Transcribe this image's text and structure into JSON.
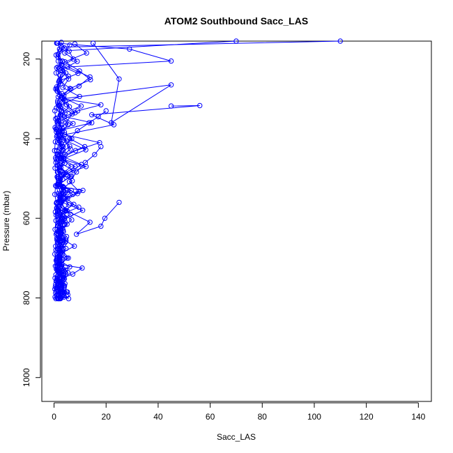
{
  "chart_data": {
    "type": "line",
    "title": "ATOM2 Southbound Sacc_LAS",
    "xlabel": "Sacc_LAS",
    "ylabel": "Pressure (mbar)",
    "x_ticks": [
      0,
      20,
      40,
      60,
      80,
      100,
      120,
      140
    ],
    "y_ticks": [
      200,
      400,
      600,
      800,
      1000
    ],
    "xlim": [
      -4.7,
      145
    ],
    "ylim": [
      1060,
      155
    ],
    "y_reversed": true,
    "marker": "open-circle",
    "line_color": "#0000ff",
    "grid": false,
    "series": [
      {
        "x": [
          1.5,
          2.1,
          0.8,
          3.2,
          1.0,
          2.5,
          1.8,
          0.6,
          2.2,
          1.4,
          3.0,
          1.1,
          2.6,
          0.9,
          1.7,
          2.8,
          1.2,
          0.7,
          2.0,
          1.5,
          3.4,
          2.3,
          1.0,
          4.1,
          2.7,
          1.6,
          0.8,
          3.1,
          2.4,
          1.3,
          2.9,
          4.5,
          3.6,
          2.2,
          5.1,
          3.8,
          1.9
        ],
        "y": [
          160,
          175,
          190,
          205,
          222,
          240,
          258,
          275,
          292,
          310,
          330,
          348,
          365,
          383,
          400,
          420,
          440,
          460,
          480,
          500,
          520,
          540,
          560,
          580,
          600,
          620,
          640,
          660,
          680,
          700,
          720,
          740,
          755,
          770,
          785,
          795,
          802
        ]
      },
      {
        "x": [
          2.8,
          4.0,
          1.5,
          3.3,
          2.1,
          5.5,
          2.6,
          1.3,
          3.9,
          2.0,
          4.2,
          1.8,
          3.0,
          2.4,
          1.6,
          3.5,
          2.9,
          1.2,
          4.4,
          2.3,
          3.7,
          1.9,
          2.7,
          5.0,
          3.2,
          1.4,
          2.5,
          4.6,
          3.0,
          1.7,
          2.2,
          3.8,
          1.1,
          4.0,
          2.6,
          5.6
        ],
        "y": [
          158,
          172,
          188,
          206,
          224,
          243,
          262,
          281,
          300,
          318,
          336,
          354,
          372,
          391,
          410,
          429,
          448,
          467,
          486,
          505,
          524,
          543,
          562,
          581,
          600,
          619,
          638,
          657,
          676,
          695,
          714,
          733,
          752,
          770,
          788,
          802
        ]
      },
      {
        "x": [
          1.2,
          5.8,
          7.4,
          3.1,
          9.2,
          2.0,
          6.5,
          1.6,
          4.8,
          8.1,
          2.7,
          1.0,
          3.6,
          6.0,
          2.2,
          4.1,
          1.4,
          7.0,
          2.9,
          5.2,
          1.8,
          3.4,
          2.5,
          1.1,
          4.3,
          2.0,
          3.1,
          1.5,
          2.8,
          4.0,
          1.3,
          2.6
        ],
        "y": [
          160,
          180,
          200,
          218,
          236,
          255,
          275,
          295,
          315,
          335,
          356,
          377,
          398,
          419,
          440,
          462,
          484,
          506,
          528,
          550,
          572,
          594,
          616,
          638,
          660,
          682,
          704,
          726,
          748,
          770,
          790,
          801
        ]
      },
      {
        "x": [
          8.0,
          12.5,
          4.2,
          9.8,
          14.0,
          6.1,
          3.0,
          10.4,
          2.4,
          7.3,
          1.9,
          5.0,
          12.2,
          3.8,
          2.1,
          6.7,
          1.5,
          9.0,
          2.8,
          4.4,
          1.7,
          3.3,
          2.2,
          7.8,
          1.4,
          2.9,
          5.3,
          2.0,
          3.6,
          1.2
        ],
        "y": [
          162,
          185,
          207,
          230,
          252,
          274,
          296,
          318,
          340,
          362,
          384,
          406,
          428,
          450,
          472,
          494,
          516,
          538,
          560,
          582,
          604,
          626,
          648,
          670,
          692,
          714,
          736,
          758,
          780,
          800
        ]
      },
      {
        "x": [
          110,
          3.0,
          1.5,
          2.8,
          4.5,
          2.0,
          1.1,
          3.4,
          5.9,
          2.5,
          1.7,
          4.0,
          2.2,
          3.1,
          1.4,
          2.6,
          6.2,
          1.9,
          3.5,
          1.2,
          2.4,
          4.2,
          1.6,
          3.0,
          2.1,
          1.3,
          2.7,
          1.8,
          3.6,
          2.3,
          1.0,
          4.8,
          3.0,
          1.5
        ],
        "y": [
          155,
          170,
          195,
          215,
          235,
          255,
          275,
          300,
          320,
          340,
          362,
          384,
          406,
          428,
          450,
          472,
          494,
          516,
          538,
          560,
          584,
          608,
          632,
          656,
          680,
          704,
          720,
          735,
          750,
          762,
          774,
          785,
          795,
          802
        ]
      },
      {
        "x": [
          70,
          2.3,
          1.6,
          3.4,
          2.0,
          1.2,
          4.2,
          2.8,
          1.5,
          3.1,
          2.2,
          1.0,
          3.7,
          2.5,
          1.8,
          4.5,
          2.1,
          1.3,
          2.9,
          3.5,
          1.7,
          2.4,
          1.1,
          3.0,
          2.0,
          1.4,
          2.6,
          3.9,
          1.8,
          2.3
        ],
        "y": [
          155,
          180,
          205,
          230,
          255,
          280,
          305,
          330,
          355,
          380,
          405,
          430,
          455,
          480,
          505,
          530,
          555,
          580,
          605,
          630,
          655,
          680,
          700,
          716,
          730,
          745,
          760,
          775,
          790,
          800
        ]
      },
      {
        "x": [
          1.0,
          29.0,
          45.0,
          5.2,
          13.8,
          9.6,
          3.8,
          1.7,
          2.6,
          5.4,
          1.2,
          3.2,
          2.0,
          6.6,
          1.5,
          3.7,
          2.3,
          1.1,
          4.1,
          2.7,
          1.4,
          3.0,
          1.9,
          1.0,
          2.5,
          4.0,
          1.6,
          3.3,
          2.2
        ],
        "y": [
          160,
          175,
          205,
          220,
          245,
          268,
          292,
          316,
          340,
          365,
          392,
          418,
          444,
          470,
          496,
          522,
          548,
          574,
          600,
          626,
          652,
          678,
          704,
          720,
          736,
          752,
          768,
          784,
          800
        ]
      },
      {
        "x": [
          15.0,
          25.0,
          22.0,
          45.0,
          3.4,
          18.0,
          9.1,
          4.0,
          14.5,
          2.1,
          6.8,
          3.5,
          1.6,
          10.5,
          4.7,
          1.3,
          2.9,
          7.6,
          2.0,
          5.0,
          1.5,
          3.8,
          2.4,
          1.1,
          4.4,
          2.0,
          3.1,
          1.6,
          2.7
        ],
        "y": [
          160,
          250,
          360,
          265,
          300,
          315,
          330,
          345,
          360,
          380,
          400,
          420,
          440,
          465,
          490,
          515,
          540,
          565,
          590,
          615,
          640,
          665,
          690,
          712,
          730,
          748,
          766,
          784,
          800
        ]
      },
      {
        "x": [
          45.0,
          56.0,
          14.5,
          23.0,
          4.1,
          17.5,
          8.3,
          2.6,
          12.3,
          3.7,
          1.8,
          6.6,
          2.3,
          9.5,
          1.4,
          4.2,
          2.7,
          1.3,
          3.4,
          5.5,
          2.1,
          1.6,
          3.2,
          2.2,
          1.2,
          2.9,
          1.8,
          3.9,
          2.4
        ],
        "y": [
          318,
          317,
          340,
          365,
          390,
          410,
          430,
          450,
          470,
          490,
          510,
          530,
          550,
          572,
          594,
          616,
          638,
          660,
          682,
          700,
          715,
          730,
          745,
          760,
          772,
          784,
          792,
          798,
          802
        ]
      },
      {
        "x": [
          20.0,
          17.0,
          13.5,
          9.0,
          6.1,
          11.8,
          4.3,
          2.2,
          7.4,
          1.6,
          3.5,
          2.6,
          5.7,
          1.3,
          3.0,
          2.0,
          1.1,
          4.6,
          2.4,
          1.7,
          3.3,
          2.1,
          1.4,
          2.8,
          4.8
        ],
        "y": [
          330,
          345,
          360,
          380,
          400,
          420,
          440,
          460,
          480,
          500,
          522,
          544,
          566,
          588,
          610,
          632,
          654,
          676,
          698,
          715,
          732,
          748,
          764,
          780,
          795
        ]
      },
      {
        "x": [
          25.0,
          19.5,
          18.0,
          8.6,
          13.8,
          4.5,
          2.7,
          7.2,
          1.9,
          11.1,
          3.9,
          2.2,
          6.3,
          1.4,
          3.6,
          2.4,
          1.7,
          5.0,
          2.9,
          1.2,
          3.8,
          2.0,
          1.5,
          2.6
        ],
        "y": [
          560,
          600,
          620,
          640,
          610,
          580,
          560,
          540,
          520,
          530,
          550,
          570,
          590,
          612,
          634,
          656,
          678,
          700,
          715,
          730,
          745,
          760,
          775,
          790
        ]
      },
      {
        "x": [
          18.0,
          15.6,
          12.0,
          8.6,
          5.9,
          9.6,
          3.2,
          1.8,
          6.8,
          2.3,
          4.5,
          1.5,
          3.0,
          2.1,
          10.8,
          7.2,
          1.2,
          3.6,
          2.5,
          1.6
        ],
        "y": [
          420,
          440,
          460,
          484,
          508,
          532,
          556,
          580,
          604,
          628,
          652,
          676,
          700,
          716,
          725,
          740,
          756,
          770,
          785,
          800
        ]
      },
      {
        "x": [
          1.5,
          0.8,
          2.2,
          1.0,
          3.0,
          1.4,
          0.9,
          2.5,
          1.2,
          0.7,
          1.8,
          2.8,
          1.1,
          0.6,
          2.0,
          1.3,
          3.3,
          0.9,
          1.6,
          2.4,
          1.0,
          0.8,
          1.9,
          1.2,
          2.7,
          1.5,
          0.7,
          2.1,
          1.1,
          1.7,
          0.9,
          2.3,
          1.4,
          0.8,
          1.8,
          1.0,
          2.6,
          1.3
        ],
        "y": [
          220,
          235,
          252,
          270,
          287,
          305,
          323,
          340,
          358,
          376,
          394,
          412,
          430,
          448,
          466,
          484,
          502,
          520,
          538,
          556,
          574,
          592,
          610,
          628,
          646,
          664,
          680,
          694,
          706,
          718,
          728,
          738,
          748,
          758,
          768,
          778,
          790,
          800
        ]
      },
      {
        "x": [
          0.3,
          0.6,
          0.4,
          1.0,
          0.5,
          0.2,
          0.8,
          0.4,
          1.2,
          0.6,
          0.3,
          0.9,
          0.5,
          0.7,
          0.4,
          1.1,
          0.6,
          0.3,
          0.8,
          0.5,
          1.3,
          0.7,
          0.4,
          0.9,
          0.6,
          0.5,
          0.3,
          0.8,
          0.6,
          1.0,
          0.4,
          0.7
        ],
        "y": [
          330,
          350,
          372,
          395,
          408,
          430,
          452,
          474,
          496,
          518,
          540,
          562,
          584,
          606,
          628,
          650,
          670,
          690,
          706,
          720,
          732,
          742,
          750,
          758,
          766,
          772,
          778,
          783,
          788,
          793,
          798,
          802
        ]
      },
      {
        "x": [
          6.0,
          4.1,
          8.9,
          2.8,
          5.6,
          3.4,
          9.8,
          2.2,
          7.0,
          4.6,
          1.9,
          3.7,
          6.3,
          2.5,
          8.1,
          3.0,
          1.6,
          5.1,
          2.4,
          11.0,
          3.9,
          2.0,
          4.8,
          1.4,
          3.1,
          2.6,
          6.0,
          1.8,
          3.5,
          4.2,
          2.3,
          5.3
        ],
        "y": [
          165,
          185,
          206,
          228,
          250,
          272,
          294,
          316,
          338,
          360,
          382,
          404,
          426,
          448,
          470,
          492,
          514,
          536,
          558,
          580,
          602,
          624,
          646,
          668,
          690,
          708,
          722,
          736,
          750,
          764,
          778,
          792
        ]
      }
    ]
  }
}
